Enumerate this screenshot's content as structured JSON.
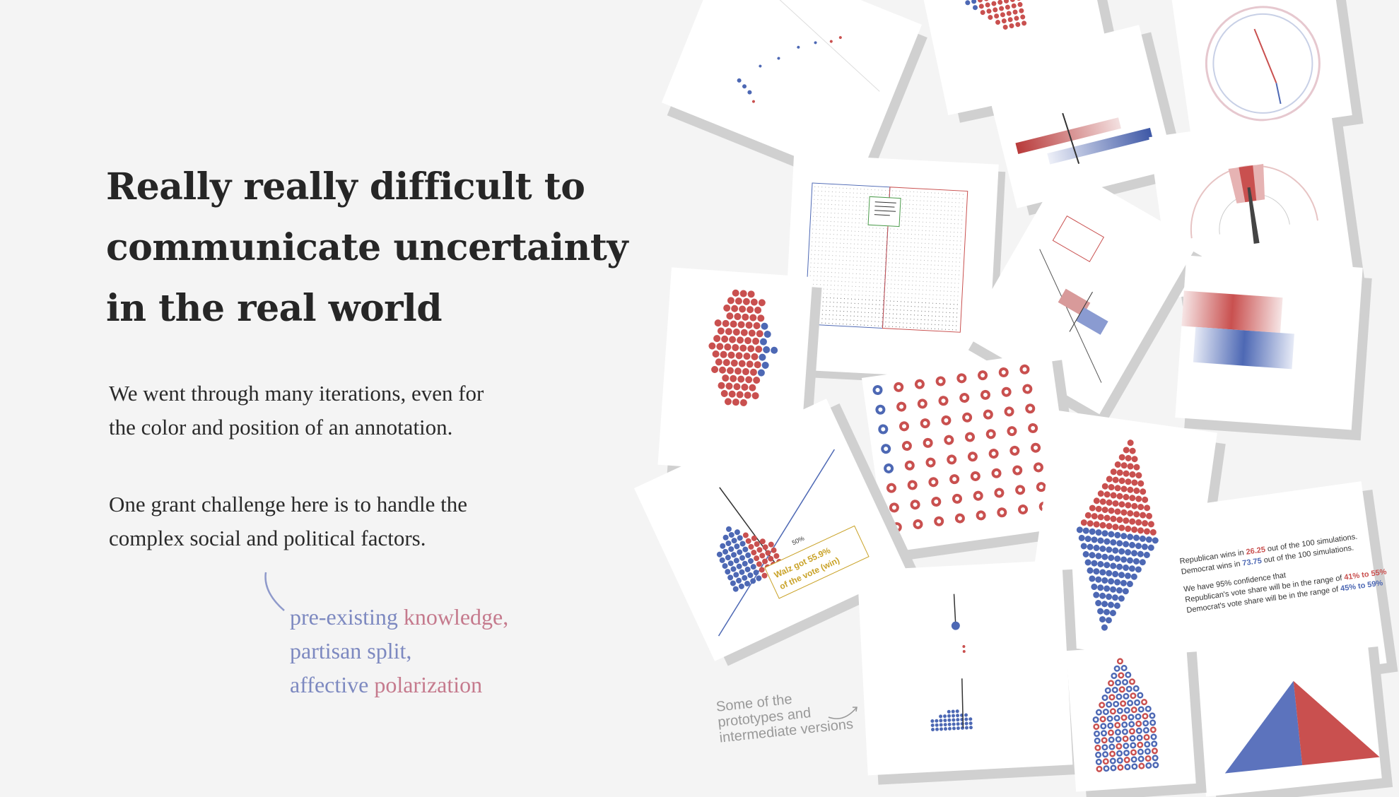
{
  "heading": {
    "line1": "Really really difficult to",
    "line2": "communicate uncertainty",
    "line3": "in the real world"
  },
  "paragraph1": {
    "line1": "We went through many iterations, even for",
    "line2": "the color and position of an annotation."
  },
  "paragraph2": {
    "line1": "One grant challenge here is to handle the",
    "line2": "complex social and political factors."
  },
  "factors": {
    "item1_a": "pre-existing",
    "item1_b": "knowledge,",
    "item2": "partisan split,",
    "item3_a": "affective",
    "item3_b": "polarization"
  },
  "caption": {
    "line1": "Some of the",
    "line2": "prototypes and",
    "line3": "intermediate versions"
  },
  "prototype_texts": {
    "annotation_1": "50%",
    "annotation_2": "Walz got 55.9%",
    "annotation_3": "of the vote (win)",
    "summary_1_a": "Republican wins in",
    "summary_1_b": "26.25",
    "summary_1_c": "out of the 100 simulations.",
    "summary_2_a": "Democrat wins in",
    "summary_2_b": "73.75",
    "summary_2_c": "out of the 100 simulations.",
    "summary_3": "We have 95% confidence that",
    "summary_4_a": "Republican's vote share will be in the range of",
    "summary_4_b": "41% to 55%",
    "summary_5_a": "Democrat's vote share will be in the range of",
    "summary_5_b": "45% to 59%"
  },
  "colors": {
    "republican": "#c9504f",
    "democrat": "#4d68b4",
    "text": "#262626",
    "annotation": "#c9a227"
  }
}
